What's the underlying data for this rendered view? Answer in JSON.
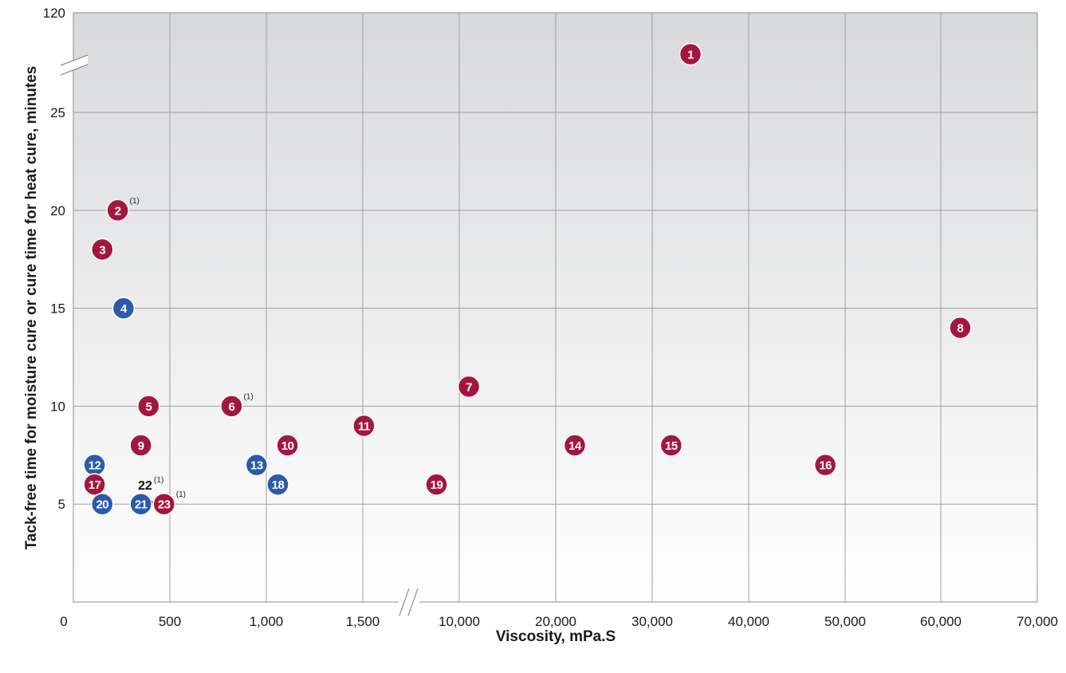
{
  "chart_data": {
    "type": "scatter",
    "xlabel": "Viscosity, mPa.S",
    "ylabel": "Tack-free time for moisture cure or cure time for heat cure, minutes",
    "x_ticks": [
      "0",
      "500",
      "1,000",
      "1,500",
      "10,000",
      "20,000",
      "30,000",
      "40,000",
      "50,000",
      "60,000",
      "70,000"
    ],
    "y_ticks": [
      "5",
      "10",
      "15",
      "20",
      "25",
      "120"
    ],
    "x_axis_break_between": [
      "1,500",
      "10,000"
    ],
    "y_axis_break_between": [
      "25",
      "120"
    ],
    "grid": true,
    "colors": {
      "red": "#a3173f",
      "blue": "#2b5ba8",
      "grid": "#a0a0a0"
    },
    "points": [
      {
        "label": "1",
        "x": 34000,
        "y": 120,
        "color": "red",
        "note": ""
      },
      {
        "label": "2",
        "x": 230,
        "y": 20,
        "color": "red",
        "note": "(1)"
      },
      {
        "label": "3",
        "x": 150,
        "y": 18,
        "color": "red",
        "note": ""
      },
      {
        "label": "4",
        "x": 260,
        "y": 15,
        "color": "blue",
        "note": ""
      },
      {
        "label": "5",
        "x": 390,
        "y": 10,
        "color": "red",
        "note": ""
      },
      {
        "label": "6",
        "x": 820,
        "y": 10,
        "color": "red",
        "note": "(1)"
      },
      {
        "label": "7",
        "x": 11000,
        "y": 11,
        "color": "red",
        "note": ""
      },
      {
        "label": "8",
        "x": 62000,
        "y": 14,
        "color": "red",
        "note": ""
      },
      {
        "label": "9",
        "x": 350,
        "y": 8,
        "color": "red",
        "note": ""
      },
      {
        "label": "10",
        "x": 1110,
        "y": 8,
        "color": "red",
        "note": ""
      },
      {
        "label": "11",
        "x": 1600,
        "y": 9,
        "color": "red",
        "note": ""
      },
      {
        "label": "12",
        "x": 110,
        "y": 7,
        "color": "blue",
        "note": ""
      },
      {
        "label": "13",
        "x": 950,
        "y": 7,
        "color": "blue",
        "note": ""
      },
      {
        "label": "14",
        "x": 22000,
        "y": 8,
        "color": "red",
        "note": ""
      },
      {
        "label": "15",
        "x": 32000,
        "y": 8,
        "color": "red",
        "note": ""
      },
      {
        "label": "16",
        "x": 48000,
        "y": 7,
        "color": "red",
        "note": ""
      },
      {
        "label": "17",
        "x": 110,
        "y": 6,
        "color": "red",
        "note": ""
      },
      {
        "label": "18",
        "x": 1060,
        "y": 6,
        "color": "blue",
        "note": ""
      },
      {
        "label": "19",
        "x": 8000,
        "y": 6,
        "color": "red",
        "note": ""
      },
      {
        "label": "20",
        "x": 150,
        "y": 5,
        "color": "blue",
        "note": ""
      },
      {
        "label": "21",
        "x": 350,
        "y": 5,
        "color": "blue",
        "note": ""
      },
      {
        "label": "22",
        "x": 430,
        "y": 5,
        "color": "none",
        "note": "(1)"
      },
      {
        "label": "23",
        "x": 470,
        "y": 5,
        "color": "red",
        "note": "(1)"
      }
    ]
  }
}
